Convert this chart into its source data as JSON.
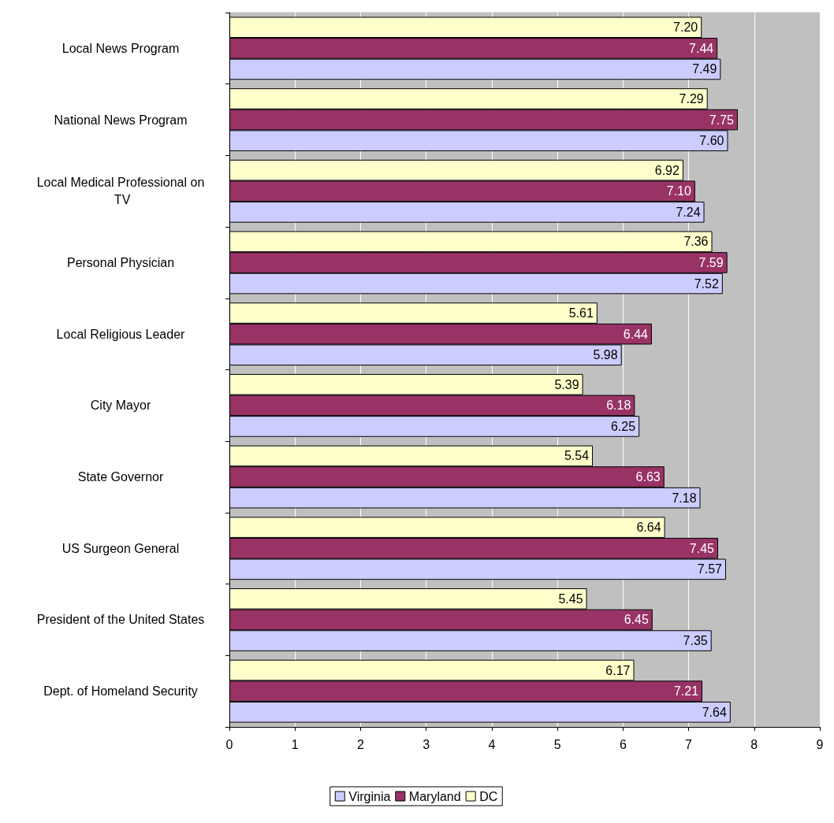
{
  "chart_data": {
    "type": "bar",
    "orientation": "horizontal",
    "categories": [
      "Local News Program",
      "National News Program",
      "Local Medical Professional on TV",
      "Personal Physician",
      "Local Religious Leader",
      "City Mayor",
      "State Governor",
      "US Surgeon General",
      "President of the United States",
      "Dept. of Homeland Security"
    ],
    "series": [
      {
        "name": "Virginia",
        "color": "#ccccff",
        "values": [
          7.49,
          7.6,
          7.24,
          7.52,
          5.98,
          6.25,
          7.18,
          7.57,
          7.35,
          7.64
        ],
        "value_labels": [
          "7.49",
          "7.60",
          "7.24",
          "7.52",
          "5.98",
          "6.25",
          "7.18",
          "7.57",
          "7.35",
          "7.64"
        ]
      },
      {
        "name": "Maryland",
        "color": "#993366",
        "values": [
          7.44,
          7.75,
          7.1,
          7.59,
          6.44,
          6.18,
          6.63,
          7.45,
          6.45,
          7.21
        ],
        "value_labels": [
          "7.44",
          "7.75",
          "7.10",
          "7.59",
          "6.44",
          "6.18",
          "6.63",
          "7.45",
          "6.45",
          "7.21"
        ]
      },
      {
        "name": "DC",
        "color": "#ffffcc",
        "values": [
          7.2,
          7.29,
          6.92,
          7.36,
          5.61,
          5.39,
          5.54,
          6.64,
          5.45,
          6.17
        ],
        "value_labels": [
          "7.20",
          "7.29",
          "6.92",
          "7.36",
          "5.61",
          "5.39",
          "5.54",
          "6.64",
          "5.45",
          "6.17"
        ]
      }
    ],
    "xlim": [
      0,
      9
    ],
    "xticks": [
      0,
      1,
      2,
      3,
      4,
      5,
      6,
      7,
      8,
      9
    ],
    "grid": "x",
    "legend": "bottom"
  }
}
